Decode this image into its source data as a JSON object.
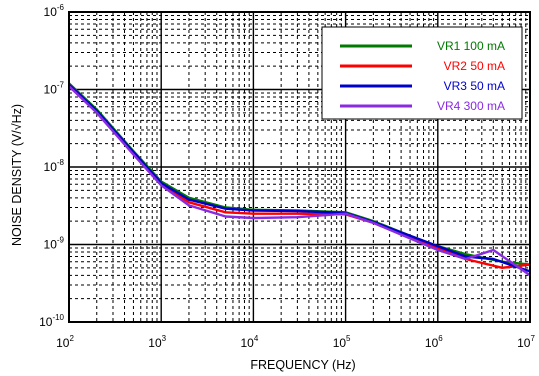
{
  "chart_data": {
    "type": "line",
    "xscale": "log",
    "yscale": "log",
    "xlim": [
      100,
      10000000
    ],
    "ylim": [
      1e-10,
      1e-06
    ],
    "grid": true,
    "xlabel": "FREQUENCY (Hz)",
    "ylabel": "NOISE DENSITY (V/√Hz)",
    "x_ticks": [
      {
        "base": "10",
        "exp": "2"
      },
      {
        "base": "10",
        "exp": "3"
      },
      {
        "base": "10",
        "exp": "4"
      },
      {
        "base": "10",
        "exp": "5"
      },
      {
        "base": "10",
        "exp": "6"
      },
      {
        "base": "10",
        "exp": "7"
      }
    ],
    "y_ticks": [
      {
        "base": "10",
        "exp": "-10"
      },
      {
        "base": "10",
        "exp": "-9"
      },
      {
        "base": "10",
        "exp": "-8"
      },
      {
        "base": "10",
        "exp": "-7"
      },
      {
        "base": "10",
        "exp": "-6"
      }
    ],
    "legend_position": "top-right",
    "series": [
      {
        "name": "VR1 100 mA",
        "color": "#007a00",
        "points": [
          [
            100,
            1.2e-07
          ],
          [
            200,
            5.5e-08
          ],
          [
            500,
            1.6e-08
          ],
          [
            1000,
            6.5e-09
          ],
          [
            2000,
            4e-09
          ],
          [
            5000,
            3e-09
          ],
          [
            10000,
            2.8e-09
          ],
          [
            30000,
            2.75e-09
          ],
          [
            100000,
            2.6e-09
          ],
          [
            200000,
            2e-09
          ],
          [
            500000,
            1.3e-09
          ],
          [
            1000000,
            9.5e-10
          ],
          [
            2000000,
            7.5e-10
          ],
          [
            5000000,
            6e-10
          ],
          [
            10000000,
            5.5e-10
          ]
        ]
      },
      {
        "name": "VR2 50 mA",
        "color": "#ff0000",
        "points": [
          [
            100,
            1.15e-07
          ],
          [
            200,
            5.2e-08
          ],
          [
            500,
            1.5e-08
          ],
          [
            1000,
            6e-09
          ],
          [
            2000,
            3.5e-09
          ],
          [
            5000,
            2.6e-09
          ],
          [
            10000,
            2.5e-09
          ],
          [
            30000,
            2.5e-09
          ],
          [
            100000,
            2.45e-09
          ],
          [
            200000,
            1.9e-09
          ],
          [
            500000,
            1.25e-09
          ],
          [
            1000000,
            9e-10
          ],
          [
            2000000,
            6.5e-10
          ],
          [
            5000000,
            5e-10
          ],
          [
            10000000,
            5.5e-10
          ]
        ]
      },
      {
        "name": "VR3 50 mA",
        "color": "#0000cc",
        "points": [
          [
            100,
            1.15e-07
          ],
          [
            200,
            5.3e-08
          ],
          [
            500,
            1.55e-08
          ],
          [
            1000,
            6.2e-09
          ],
          [
            2000,
            3.8e-09
          ],
          [
            5000,
            2.9e-09
          ],
          [
            10000,
            2.75e-09
          ],
          [
            30000,
            2.7e-09
          ],
          [
            100000,
            2.55e-09
          ],
          [
            200000,
            1.95e-09
          ],
          [
            500000,
            1.3e-09
          ],
          [
            1000000,
            9.5e-10
          ],
          [
            2000000,
            7e-10
          ],
          [
            4000000,
            6.5e-10
          ],
          [
            10000000,
            4.5e-10
          ]
        ]
      },
      {
        "name": "VR4 300 mA",
        "color": "#8a2be2",
        "points": [
          [
            100,
            1.1e-07
          ],
          [
            200,
            5e-08
          ],
          [
            500,
            1.45e-08
          ],
          [
            1000,
            5.8e-09
          ],
          [
            2000,
            3.2e-09
          ],
          [
            5000,
            2.3e-09
          ],
          [
            10000,
            2.2e-09
          ],
          [
            30000,
            2.25e-09
          ],
          [
            100000,
            2.5e-09
          ],
          [
            200000,
            1.9e-09
          ],
          [
            500000,
            1.2e-09
          ],
          [
            1000000,
            8.5e-10
          ],
          [
            2000000,
            6.5e-10
          ],
          [
            4000000,
            8.5e-10
          ],
          [
            10000000,
            4e-10
          ]
        ]
      }
    ]
  }
}
